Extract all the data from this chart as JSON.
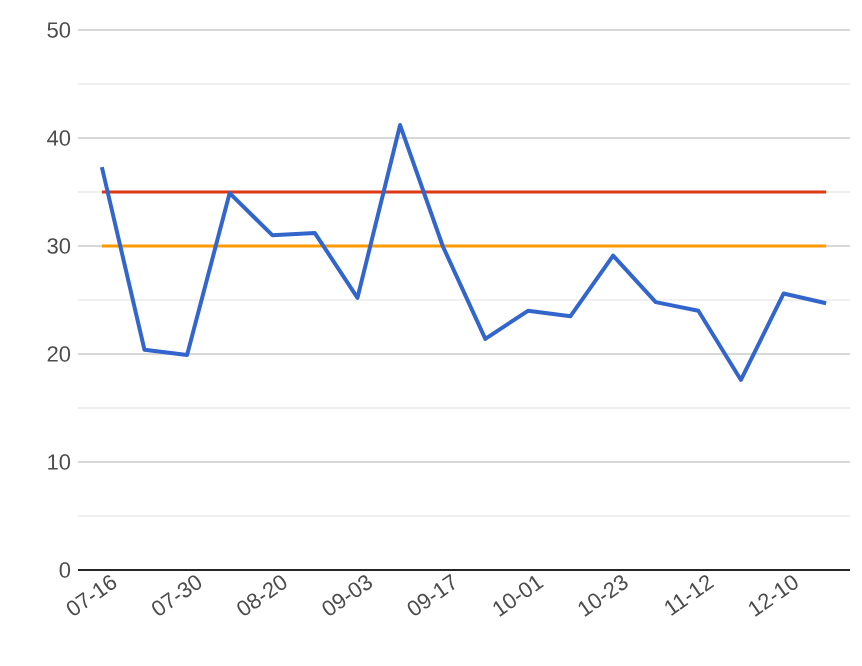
{
  "chart_data": {
    "type": "line",
    "categories": [
      "07-16",
      null,
      "07-30",
      null,
      "08-20",
      null,
      "09-03",
      null,
      "09-17",
      null,
      "10-01",
      null,
      "10-23",
      null,
      "11-12",
      null,
      "12-10",
      null
    ],
    "series": [
      {
        "color": "#3366cc",
        "values": [
          37.3,
          20.4,
          19.9,
          34.9,
          31.0,
          31.2,
          25.2,
          41.2,
          30,
          21.4,
          24.0,
          23.5,
          29.1,
          24.8,
          24.0,
          17.6,
          25.6,
          24.7
        ]
      }
    ],
    "ylim": [
      0,
      50
    ],
    "yticks": [
      0,
      {
        "value": 5,
        "label": null
      },
      10,
      {
        "value": 15,
        "label": null
      },
      20,
      {
        "value": 25,
        "label": null
      },
      30,
      {
        "value": 35,
        "label": null
      },
      40,
      {
        "value": 45,
        "label": null
      },
      50
    ],
    "grid": "y",
    "marker": "none",
    "line_style": "solid",
    "ref_lines": [
      {
        "axis": "y",
        "value": 35,
        "color": "#dc3912"
      },
      {
        "axis": "y",
        "value": 30,
        "color": "#ff9900"
      }
    ]
  }
}
